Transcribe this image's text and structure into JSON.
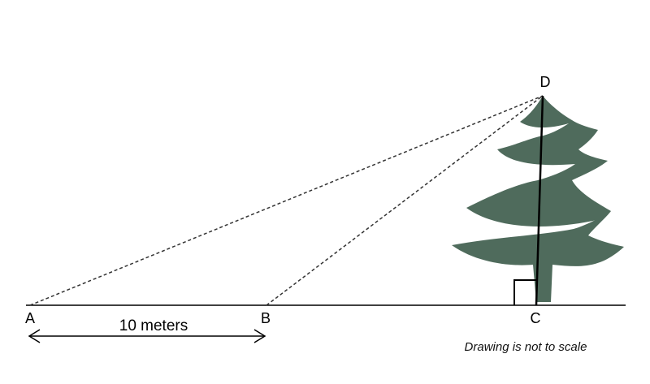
{
  "points": {
    "a": "A",
    "b": "B",
    "c": "C",
    "d": "D"
  },
  "distance_label": "10 meters",
  "note": "Drawing is not to scale",
  "colors": {
    "tree": "#4f6b5c",
    "line": "#000000",
    "dashed": "#333333"
  }
}
